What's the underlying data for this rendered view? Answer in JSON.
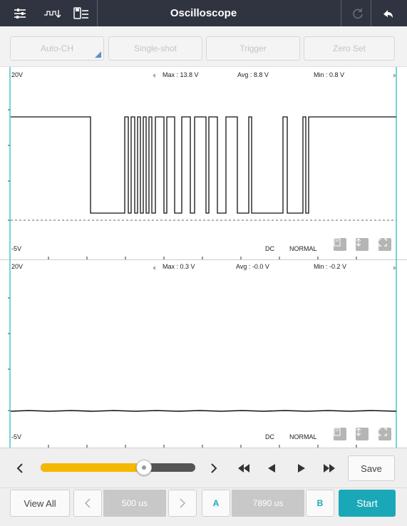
{
  "app": {
    "title": "Oscilloscope"
  },
  "titlebar_icons": [
    "sliders-icon",
    "waveform-icon",
    "save-list-icon",
    "refresh-icon",
    "back-icon"
  ],
  "toolbar": {
    "auto_ch": "Auto-CH",
    "single_shot": "Single-shot",
    "trigger": "Trigger",
    "zero_set": "Zero Set"
  },
  "channel1": {
    "top_label": "20V",
    "bottom_label": "-5V",
    "max": "Max : 13.8 V",
    "avg": "Avg : 8.8 V",
    "min": "Min : 0.8 V",
    "coupling": "DC",
    "mode": "NORMAL"
  },
  "channel2": {
    "top_label": "20V",
    "bottom_label": "-5V",
    "max": "Max : 0.3 V",
    "avg": "Avg : -0.0 V",
    "min": "Min : -0.2 V",
    "coupling": "DC",
    "mode": "NORMAL"
  },
  "controls": {
    "slider_position": 0.67,
    "save": "Save"
  },
  "bottom": {
    "view_all": "View All",
    "timebase": "500 us",
    "cursor_a": "A",
    "cursor_delta": "7890 us",
    "cursor_b": "B",
    "start": "Start"
  },
  "colors": {
    "titlebar": "#2f3440",
    "accent_teal": "#1aa8b8",
    "slider_fill": "#f5b800",
    "cursor_line": "#4fc3c8"
  }
}
